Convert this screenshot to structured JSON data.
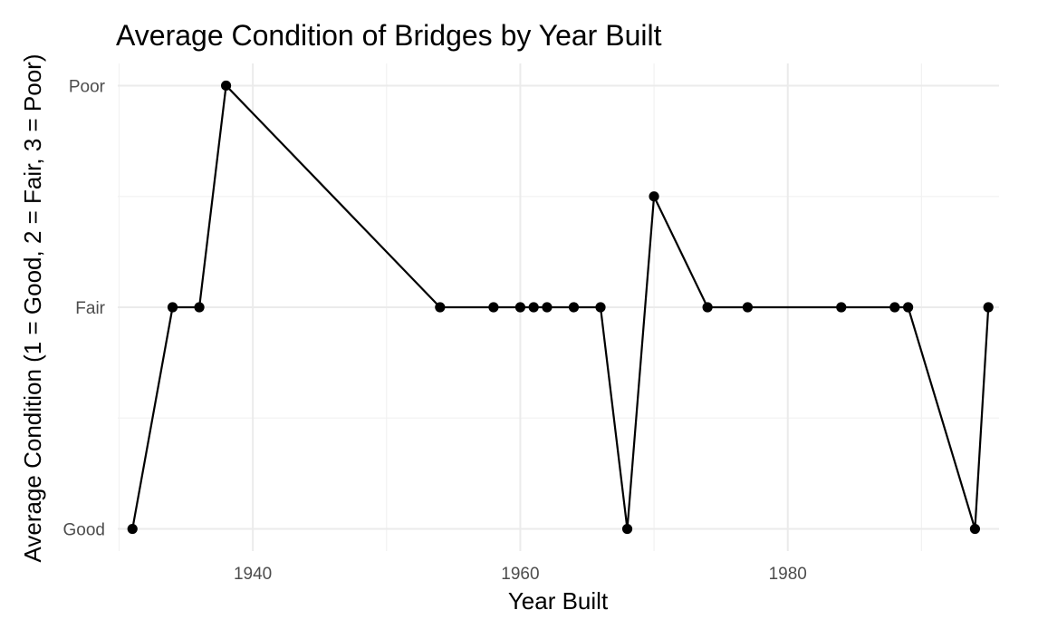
{
  "chart_data": {
    "type": "line",
    "title": "Average Condition of Bridges by Year Built",
    "xlabel": "Year Built",
    "ylabel": "Average Condition (1 = Good, 2 = Fair, 3 = Poor)",
    "xlim": [
      1929.9,
      1995.8
    ],
    "ylim": [
      0.9,
      3.1
    ],
    "x_ticks": [
      1940,
      1960,
      1980
    ],
    "x_tick_labels": [
      "1940",
      "1960",
      "1980"
    ],
    "y_ticks": [
      1,
      2,
      3
    ],
    "y_tick_labels": [
      "Good",
      "Fair",
      "Poor"
    ],
    "grid": true,
    "legend": "none",
    "series": [
      {
        "color": "#000000",
        "x": [
          1931,
          1934,
          1936,
          1938,
          1954,
          1958,
          1960,
          1961,
          1962,
          1964,
          1966,
          1968,
          1970,
          1974,
          1977,
          1984,
          1988,
          1989,
          1994,
          1995
        ],
        "y": [
          1,
          2,
          2,
          3,
          2,
          2,
          2,
          2,
          2,
          2,
          2,
          1,
          2.5,
          2,
          2,
          2,
          2,
          2,
          1,
          2
        ]
      }
    ]
  }
}
